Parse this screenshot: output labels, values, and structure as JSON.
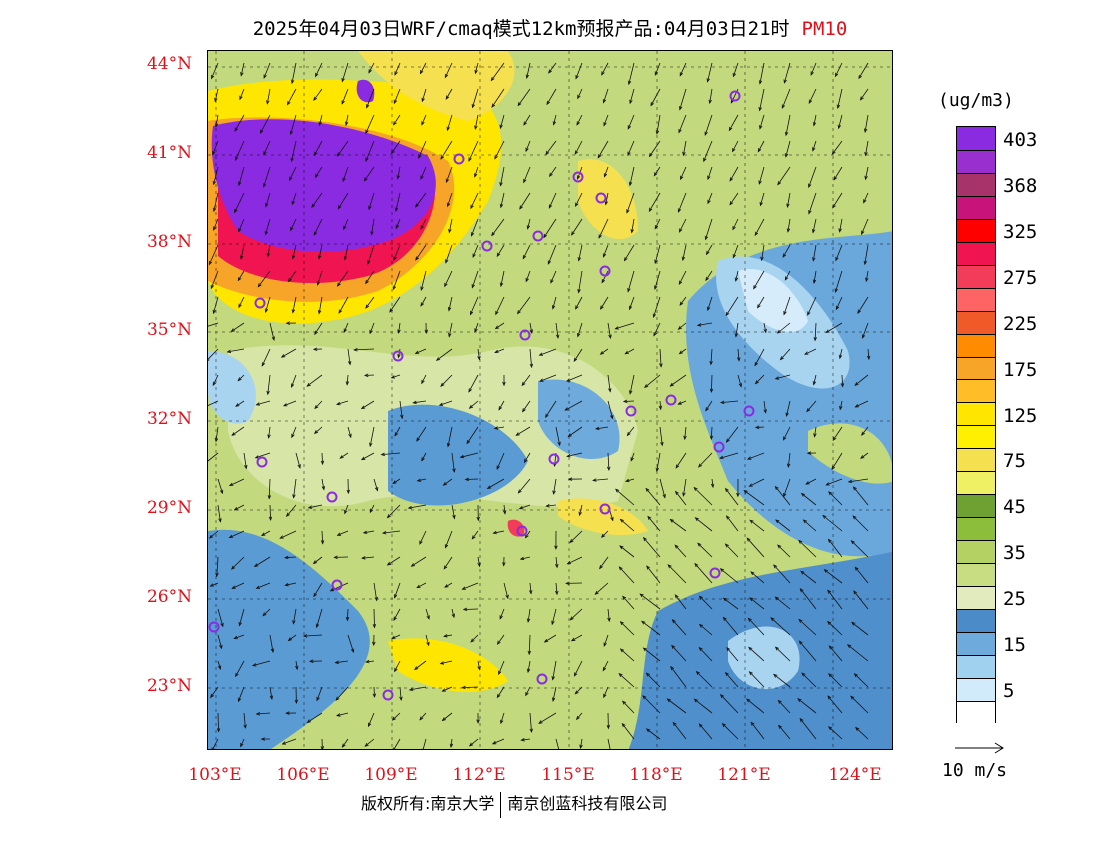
{
  "title": {
    "text": "2025年04月03日WRF/cmaq模式12km预报产品:04月03日21时",
    "pollutant": "PM10"
  },
  "map": {
    "lat_labels": [
      "44°N",
      "41°N",
      "38°N",
      "35°N",
      "32°N",
      "29°N",
      "26°N",
      "23°N"
    ],
    "lon_labels": [
      "103°E",
      "106°E",
      "109°E",
      "112°E",
      "115°E",
      "118°E",
      "121°E",
      "124°E"
    ]
  },
  "colorbar": {
    "unit": "(ug/m3)",
    "labels": [
      "403",
      "368",
      "325",
      "275",
      "225",
      "175",
      "125",
      "75",
      "45",
      "35",
      "25",
      "15",
      "5"
    ],
    "colors": [
      "#8a2be2",
      "#9a2fd0",
      "#a8326a",
      "#c8147a",
      "#ff0000",
      "#f01450",
      "#f33c5a",
      "#ff6464",
      "#f05a28",
      "#ff8c00",
      "#f7a528",
      "#ffbe28",
      "#ffe600",
      "#ffef00",
      "#f5e050",
      "#f0f064",
      "#6ea032",
      "#8cbe3c",
      "#b4d264",
      "#c8dc82",
      "#e1ebbe",
      "#4b8cc8",
      "#6eaadc",
      "#a0d2f0",
      "#d2ebfa",
      "#ffffff"
    ]
  },
  "legend": {
    "vector_reference": "10 m/s"
  },
  "footer": {
    "left": "版权所有:南京大学",
    "right": "南京创蓝科技有限公司"
  }
}
